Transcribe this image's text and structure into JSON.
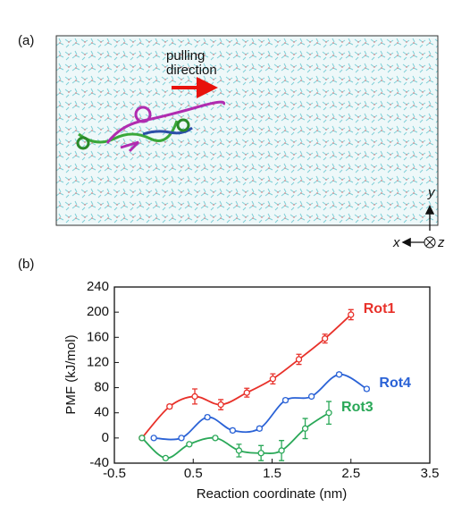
{
  "panel_a": {
    "label": "(a)",
    "annotation": [
      "pulling",
      "direction"
    ],
    "axis_labels": [
      "y",
      "x",
      "z"
    ]
  },
  "chart_data": {
    "type": "line",
    "panel_label": "(b)",
    "xlabel": "Reaction coordinate (nm)",
    "ylabel": "PMF (kJ/mol)",
    "xlim": [
      -0.5,
      3.5
    ],
    "xticks": [
      -0.5,
      0.5,
      1.5,
      2.5,
      3.5
    ],
    "ylim": [
      -40,
      240
    ],
    "yticks": [
      -40,
      0,
      40,
      80,
      120,
      160,
      200,
      240
    ],
    "series": [
      {
        "name": "Rot1",
        "color": "#e8312a",
        "x": [
          -0.15,
          0.2,
          0.52,
          0.85,
          1.18,
          1.51,
          1.84,
          2.17,
          2.5
        ],
        "values": [
          0,
          50,
          66,
          53,
          72,
          94,
          125,
          158,
          196
        ],
        "errors": [
          2,
          3,
          12,
          8,
          7,
          8,
          8,
          7,
          8
        ]
      },
      {
        "name": "Rot4",
        "color": "#2a62d6",
        "x": [
          0.0,
          0.35,
          0.68,
          1.0,
          1.34,
          1.67,
          2.0,
          2.35,
          2.7
        ],
        "values": [
          0,
          0,
          33,
          12,
          15,
          60,
          66,
          101,
          78
        ],
        "errors": [
          2,
          2,
          3,
          3,
          3,
          3,
          2,
          3,
          3
        ]
      },
      {
        "name": "Rot3",
        "color": "#2aa858",
        "x": [
          -0.15,
          0.15,
          0.45,
          0.78,
          1.08,
          1.36,
          1.62,
          1.92,
          2.22
        ],
        "values": [
          0,
          -32,
          -10,
          0,
          -20,
          -24,
          -20,
          15,
          40
        ],
        "errors": [
          2,
          2,
          2,
          2,
          10,
          12,
          16,
          16,
          18
        ]
      }
    ]
  }
}
